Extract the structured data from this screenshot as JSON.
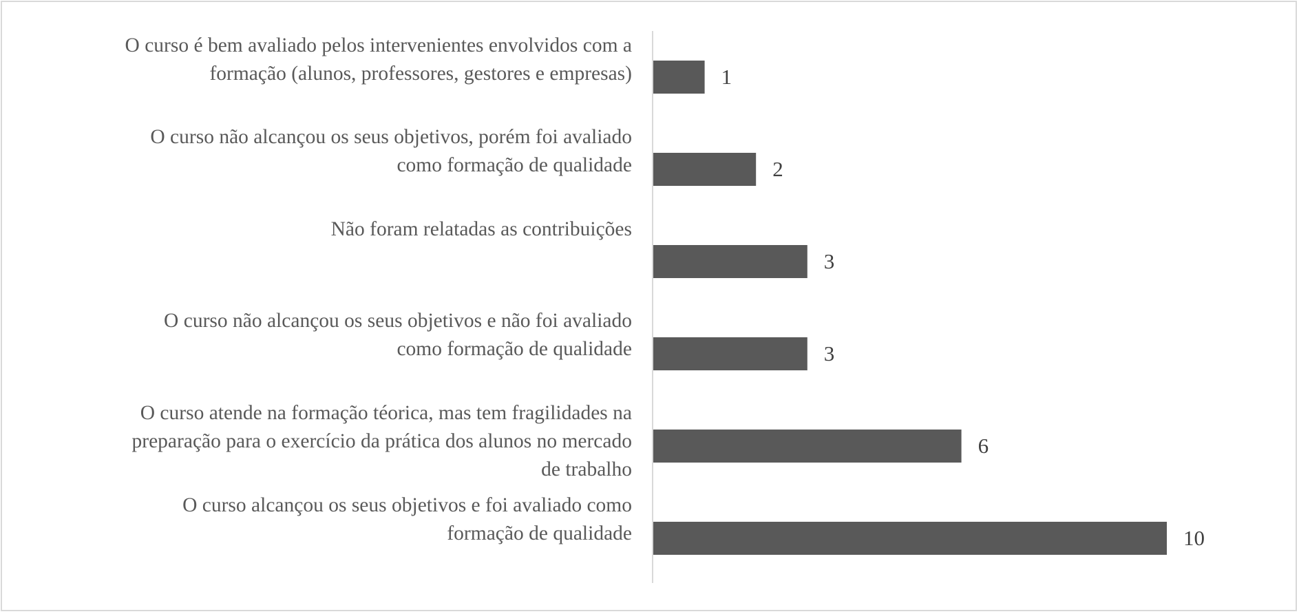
{
  "chart_data": {
    "type": "bar",
    "orientation": "horizontal",
    "categories": [
      "O curso é bem avaliado pelos intervenientes envolvidos com a\nformação (alunos, professores, gestores e empresas)",
      "O curso não alcançou os seus objetivos, porém foi avaliado\ncomo formação de qualidade",
      "Não foram relatadas as contribuições",
      "O curso não alcançou os seus objetivos e não foi avaliado\ncomo formação de qualidade",
      "O curso atende na formação téorica, mas tem fragilidades na\npreparação para o exercício da prática dos alunos no mercado\nde trabalho",
      "O curso alcançou os seus objetivos e foi avaliado como\nformação de qualidade"
    ],
    "values": [
      1,
      2,
      3,
      3,
      6,
      10
    ],
    "data_labels": [
      "1",
      "2",
      "3",
      "3",
      "6",
      "10"
    ],
    "title": "",
    "xlabel": "",
    "ylabel": "",
    "xlim": [
      0,
      10
    ],
    "grid": false,
    "legend": "none",
    "bar_color": "#595959",
    "axis_color": "#d9d9d9"
  }
}
